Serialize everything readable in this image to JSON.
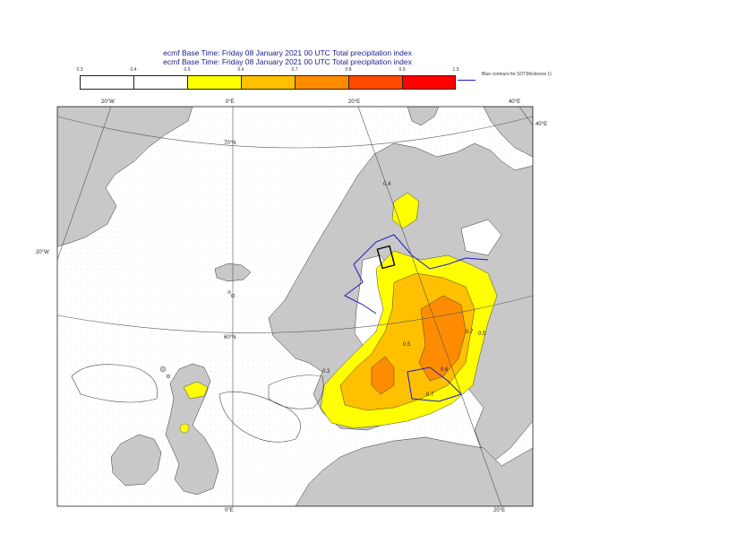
{
  "titles": {
    "line1": "ecmf  Base Time: Friday 08 January 2021 00 UTC Total precipitation index",
    "line2": "ecmf  Base Time: Friday 08 January 2021 00 UTC Total precipitation index"
  },
  "colorbar": {
    "ticks": [
      "0.3",
      "0.4",
      "0.5",
      "0.6",
      "0.7",
      "0.8",
      "0.9",
      "1.5"
    ],
    "bins": [
      {
        "range": "0.3-0.4",
        "color": "#ffffff"
      },
      {
        "range": "0.4-0.5",
        "color": "#ffffff"
      },
      {
        "range": "0.5-0.6",
        "color": "#ffff00"
      },
      {
        "range": "0.6-0.7",
        "color": "#ffc000"
      },
      {
        "range": "0.7-0.8",
        "color": "#ff8c00"
      },
      {
        "range": "0.8-0.9",
        "color": "#ff4a00"
      },
      {
        "range": "0.9-1.5",
        "color": "#ff0000"
      }
    ],
    "legend_text": "Blue contours for SOT(thickness 1)"
  },
  "map_labels": {
    "lon_20w_top": "20°W",
    "lon_0_top": "0°E",
    "lon_20e_top": "20°E",
    "lon_40e_top": "40°E",
    "lon_40e_right": "40°E",
    "lat_70n": "70°N",
    "lat_60n": "60°N",
    "lat_20w_left": "20°W",
    "lon_0_bottom": "0°E",
    "lon_20e_bottom": "20°E"
  },
  "contour_labels": [
    "0.4",
    "0.5",
    "0.6",
    "0.7",
    "0.3",
    "0.5",
    "0.7"
  ],
  "colors": {
    "land": "#c8c8c8",
    "sea": "#ffffff",
    "title": "#1a1a8c",
    "sot_contour": "#1a1acc"
  }
}
